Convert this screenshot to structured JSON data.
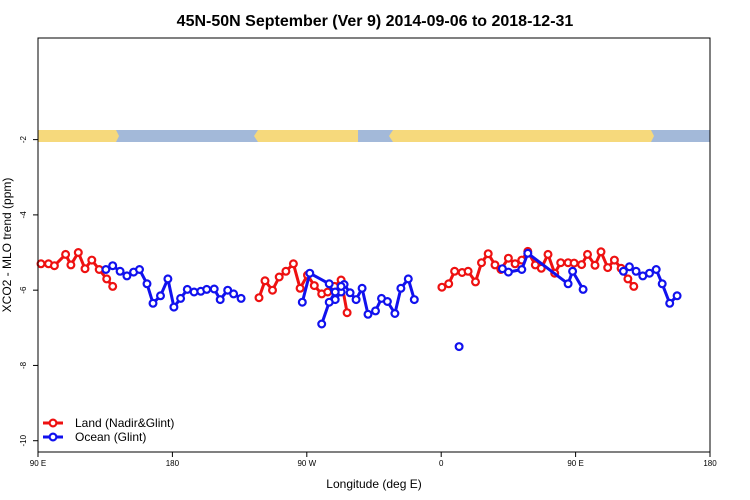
{
  "chart_data": {
    "type": "line",
    "title": "45N-50N September (Ver 9)   2014-09-06 to 2018-12-31",
    "xlabel": "Longitude (deg E)",
    "ylabel": "XCO2 - MLO trend (ppm)",
    "xlim": [
      90,
      540
    ],
    "ylim": [
      -10.3,
      0.7
    ],
    "x_ticks": [
      {
        "value": 90,
        "label": "90 E"
      },
      {
        "value": 180,
        "label": "180"
      },
      {
        "value": 270,
        "label": "90 W"
      },
      {
        "value": 360,
        "label": "0"
      },
      {
        "value": 450,
        "label": "90 E"
      },
      {
        "value": 540,
        "label": "180"
      }
    ],
    "y_ticks": [
      {
        "value": -2,
        "label": "-2"
      },
      {
        "value": -4,
        "label": "-4"
      },
      {
        "value": -6,
        "label": "-6"
      },
      {
        "value": -8,
        "label": "-8"
      },
      {
        "value": -10,
        "label": "-10"
      }
    ],
    "legend_position": "bottom-left",
    "grid": false,
    "series": [
      {
        "name": "Land (Nadir&Glint)",
        "color": "#ee1111",
        "segments": [
          [
            [
              92,
              -5.3
            ],
            [
              97,
              -5.3
            ],
            [
              101,
              -5.35
            ],
            [
              108.5,
              -5.05
            ],
            [
              112,
              -5.33
            ],
            [
              117,
              -5.0
            ],
            [
              121.5,
              -5.43
            ],
            [
              126,
              -5.2
            ],
            [
              131,
              -5.45
            ],
            [
              136,
              -5.7
            ],
            [
              140,
              -5.9
            ]
          ],
          [
            [
              238,
              -6.2
            ],
            [
              242,
              -5.75
            ],
            [
              247,
              -6.0
            ],
            [
              251.5,
              -5.65
            ],
            [
              256,
              -5.5
            ],
            [
              261,
              -5.3
            ],
            [
              265.5,
              -5.95
            ],
            [
              270.5,
              -5.6
            ],
            [
              275,
              -5.88
            ],
            [
              280,
              -6.1
            ],
            [
              284,
              -6.05
            ],
            [
              288.5,
              -5.9
            ],
            [
              293,
              -5.73
            ],
            [
              297,
              -6.6
            ]
          ],
          [
            [
              360.5,
              -5.92
            ],
            [
              365,
              -5.83
            ],
            [
              369,
              -5.5
            ],
            [
              374,
              -5.53
            ],
            [
              378,
              -5.5
            ],
            [
              383,
              -5.78
            ],
            [
              387,
              -5.27
            ],
            [
              391.5,
              -5.03
            ],
            [
              396,
              -5.33
            ],
            [
              400,
              -5.45
            ],
            [
              405,
              -5.15
            ],
            [
              409.5,
              -5.3
            ],
            [
              414,
              -5.2
            ],
            [
              418,
              -4.97
            ],
            [
              423,
              -5.33
            ],
            [
              427,
              -5.42
            ],
            [
              431.5,
              -5.05
            ],
            [
              436,
              -5.55
            ],
            [
              440,
              -5.27
            ],
            [
              445,
              -5.27
            ],
            [
              449,
              -5.28
            ],
            [
              454,
              -5.32
            ],
            [
              458,
              -5.05
            ],
            [
              463,
              -5.34
            ],
            [
              467,
              -4.98
            ],
            [
              471.5,
              -5.4
            ],
            [
              476,
              -5.2
            ],
            [
              480.5,
              -5.42
            ],
            [
              485,
              -5.7
            ],
            [
              489,
              -5.9
            ]
          ]
        ]
      },
      {
        "name": "Ocean (Glint)",
        "color": "#1111ee",
        "segments": [
          [
            [
              135.5,
              -5.45
            ],
            [
              140,
              -5.35
            ],
            [
              145,
              -5.5
            ],
            [
              149.5,
              -5.62
            ],
            [
              154,
              -5.52
            ],
            [
              158,
              -5.45
            ],
            [
              163,
              -5.83
            ],
            [
              167,
              -6.35
            ],
            [
              172,
              -6.15
            ],
            [
              177,
              -5.7
            ],
            [
              181,
              -6.45
            ],
            [
              185.5,
              -6.22
            ],
            [
              190,
              -5.98
            ],
            [
              194.5,
              -6.05
            ],
            [
              199,
              -6.03
            ],
            [
              203,
              -5.98
            ],
            [
              208,
              -5.97
            ],
            [
              212,
              -6.25
            ],
            [
              217,
              -6.0
            ],
            [
              221,
              -6.1
            ],
            [
              226,
              -6.22
            ]
          ],
          [
            [
              267,
              -6.32
            ],
            [
              272,
              -5.55
            ],
            [
              285,
              -5.83
            ],
            [
              289,
              -6.25
            ],
            [
              293,
              -6.05
            ],
            [
              295,
              -5.85
            ],
            [
              299,
              -6.07
            ],
            [
              303,
              -6.25
            ],
            [
              307,
              -5.95
            ],
            [
              311,
              -6.64
            ],
            [
              316,
              -6.55
            ],
            [
              320,
              -6.22
            ],
            [
              324,
              -6.3
            ],
            [
              329,
              -6.62
            ],
            [
              333,
              -5.95
            ],
            [
              338,
              -5.7
            ],
            [
              342,
              -6.25
            ]
          ],
          [
            [
              280,
              -6.9
            ],
            [
              285,
              -6.32
            ],
            [
              289,
              -6.05
            ],
            [
              293,
              -5.9
            ]
          ],
          [
            [
              401,
              -5.43
            ],
            [
              405,
              -5.52
            ],
            [
              414,
              -5.45
            ],
            [
              418,
              -5.02
            ],
            [
              445,
              -5.83
            ],
            [
              448,
              -5.5
            ],
            [
              455,
              -5.98
            ]
          ],
          [
            [
              482,
              -5.5
            ],
            [
              486,
              -5.38
            ],
            [
              490.5,
              -5.5
            ],
            [
              495,
              -5.62
            ],
            [
              499.5,
              -5.55
            ],
            [
              504,
              -5.45
            ],
            [
              508,
              -5.83
            ],
            [
              513,
              -6.35
            ],
            [
              518,
              -6.15
            ]
          ]
        ],
        "points": [
          [
            372,
            -7.5
          ]
        ]
      }
    ]
  }
}
